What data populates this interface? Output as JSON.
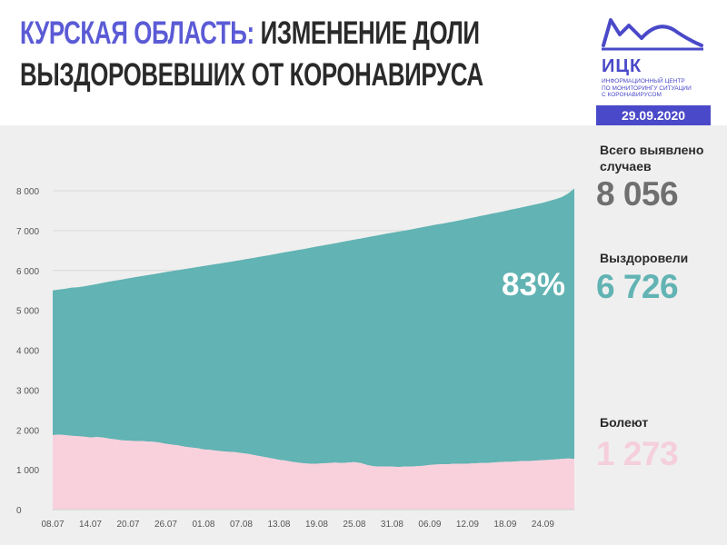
{
  "header": {
    "title_lead": "КУРСКАЯ ОБЛАСТЬ:",
    "title_rest": "ИЗМЕНЕНИЕ ДОЛИ",
    "title_line2": "ВЫЗДОРОВЕВШИХ ОТ КОРОНАВИРУСА"
  },
  "logo": {
    "name": "ИЦК",
    "subtitle_lines": [
      "ИНФОРМАЦИОННЫЙ ЦЕНТР",
      "ПО МОНИТОРИНГУ СИТУАЦИИ",
      "С КОРОНАВИРУСОМ"
    ],
    "date": "29.09.2020",
    "color": "#4a49c9"
  },
  "stats": {
    "total_label_line1": "Всего выявлено",
    "total_label_line2": "случаев",
    "total_value": "8 056",
    "recovered_label": "Выздоровели",
    "recovered_value": "6 726",
    "sick_label": "Болеют",
    "sick_value": "1 273"
  },
  "chart_data": {
    "type": "area",
    "stacked": true,
    "recovered_share_label": "83%",
    "x": [
      "08.07",
      "09.07",
      "10.07",
      "11.07",
      "12.07",
      "13.07",
      "14.07",
      "15.07",
      "16.07",
      "17.07",
      "18.07",
      "19.07",
      "20.07",
      "21.07",
      "22.07",
      "23.07",
      "24.07",
      "25.07",
      "26.07",
      "27.07",
      "28.07",
      "29.07",
      "30.07",
      "31.07",
      "01.08",
      "02.08",
      "03.08",
      "04.08",
      "05.08",
      "06.08",
      "07.08",
      "08.08",
      "09.08",
      "10.08",
      "11.08",
      "12.08",
      "13.08",
      "14.08",
      "15.08",
      "16.08",
      "17.08",
      "18.08",
      "19.08",
      "20.08",
      "21.08",
      "22.08",
      "23.08",
      "24.08",
      "25.08",
      "26.08",
      "27.08",
      "28.08",
      "29.08",
      "30.08",
      "31.08",
      "01.09",
      "02.09",
      "03.09",
      "04.09",
      "05.09",
      "06.09",
      "07.09",
      "08.09",
      "09.09",
      "10.09",
      "11.09",
      "12.09",
      "13.09",
      "14.09",
      "15.09",
      "16.09",
      "17.09",
      "18.09",
      "19.09",
      "20.09",
      "21.09",
      "22.09",
      "23.09",
      "24.09",
      "25.09",
      "26.09",
      "27.09",
      "28.09",
      "29.09"
    ],
    "x_tick_labels": [
      "08.07",
      "14.07",
      "20.07",
      "26.07",
      "01.08",
      "07.08",
      "13.08",
      "19.08",
      "25.08",
      "31.08",
      "06.09",
      "12.09",
      "18.09",
      "24.09"
    ],
    "y_ticks": [
      "0",
      "1 000",
      "2 000",
      "3 000",
      "4 000",
      "5 000",
      "6 000",
      "7 000",
      "8 000"
    ],
    "ylim": [
      0,
      8000
    ],
    "total": [
      5500,
      5520,
      5540,
      5570,
      5580,
      5600,
      5630,
      5660,
      5690,
      5720,
      5745,
      5770,
      5800,
      5830,
      5855,
      5880,
      5905,
      5930,
      5960,
      5985,
      6010,
      6035,
      6060,
      6085,
      6110,
      6135,
      6160,
      6185,
      6210,
      6235,
      6260,
      6290,
      6315,
      6345,
      6370,
      6400,
      6430,
      6460,
      6485,
      6515,
      6540,
      6570,
      6600,
      6625,
      6655,
      6685,
      6715,
      6745,
      6775,
      6800,
      6830,
      6860,
      6890,
      6920,
      6945,
      6975,
      7000,
      7030,
      7060,
      7090,
      7120,
      7150,
      7175,
      7205,
      7235,
      7265,
      7300,
      7330,
      7365,
      7395,
      7430,
      7460,
      7495,
      7530,
      7560,
      7595,
      7630,
      7665,
      7700,
      7745,
      7790,
      7840,
      7930,
      8056
    ],
    "series": [
      {
        "name": "Болеют",
        "color": "#f8d1dd",
        "values": [
          1870,
          1880,
          1870,
          1850,
          1840,
          1830,
          1810,
          1820,
          1810,
          1780,
          1760,
          1740,
          1730,
          1720,
          1720,
          1710,
          1700,
          1680,
          1650,
          1630,
          1610,
          1580,
          1560,
          1540,
          1510,
          1500,
          1480,
          1460,
          1450,
          1440,
          1420,
          1400,
          1370,
          1340,
          1310,
          1280,
          1250,
          1230,
          1200,
          1180,
          1160,
          1150,
          1150,
          1160,
          1170,
          1180,
          1170,
          1180,
          1190,
          1170,
          1120,
          1090,
          1080,
          1080,
          1080,
          1070,
          1080,
          1080,
          1090,
          1100,
          1120,
          1130,
          1140,
          1140,
          1150,
          1150,
          1150,
          1160,
          1170,
          1170,
          1180,
          1190,
          1200,
          1200,
          1210,
          1220,
          1220,
          1230,
          1240,
          1250,
          1260,
          1270,
          1280,
          1273
        ]
      },
      {
        "name": "Выздоровели",
        "color": "#62b3b3",
        "values": [
          3630,
          3640,
          3670,
          3720,
          3740,
          3770,
          3820,
          3840,
          3880,
          3940,
          3985,
          4030,
          4070,
          4110,
          4135,
          4170,
          4205,
          4250,
          4310,
          4355,
          4400,
          4455,
          4500,
          4545,
          4600,
          4635,
          4680,
          4725,
          4760,
          4795,
          4840,
          4890,
          4945,
          5005,
          5060,
          5120,
          5180,
          5230,
          5285,
          5335,
          5380,
          5420,
          5450,
          5465,
          5485,
          5505,
          5545,
          5565,
          5585,
          5630,
          5710,
          5770,
          5810,
          5840,
          5865,
          5905,
          5920,
          5950,
          5970,
          5990,
          6000,
          6020,
          6035,
          6065,
          6085,
          6115,
          6150,
          6170,
          6195,
          6225,
          6250,
          6270,
          6295,
          6330,
          6350,
          6375,
          6410,
          6435,
          6460,
          6495,
          6530,
          6570,
          6650,
          6726
        ]
      }
    ]
  }
}
